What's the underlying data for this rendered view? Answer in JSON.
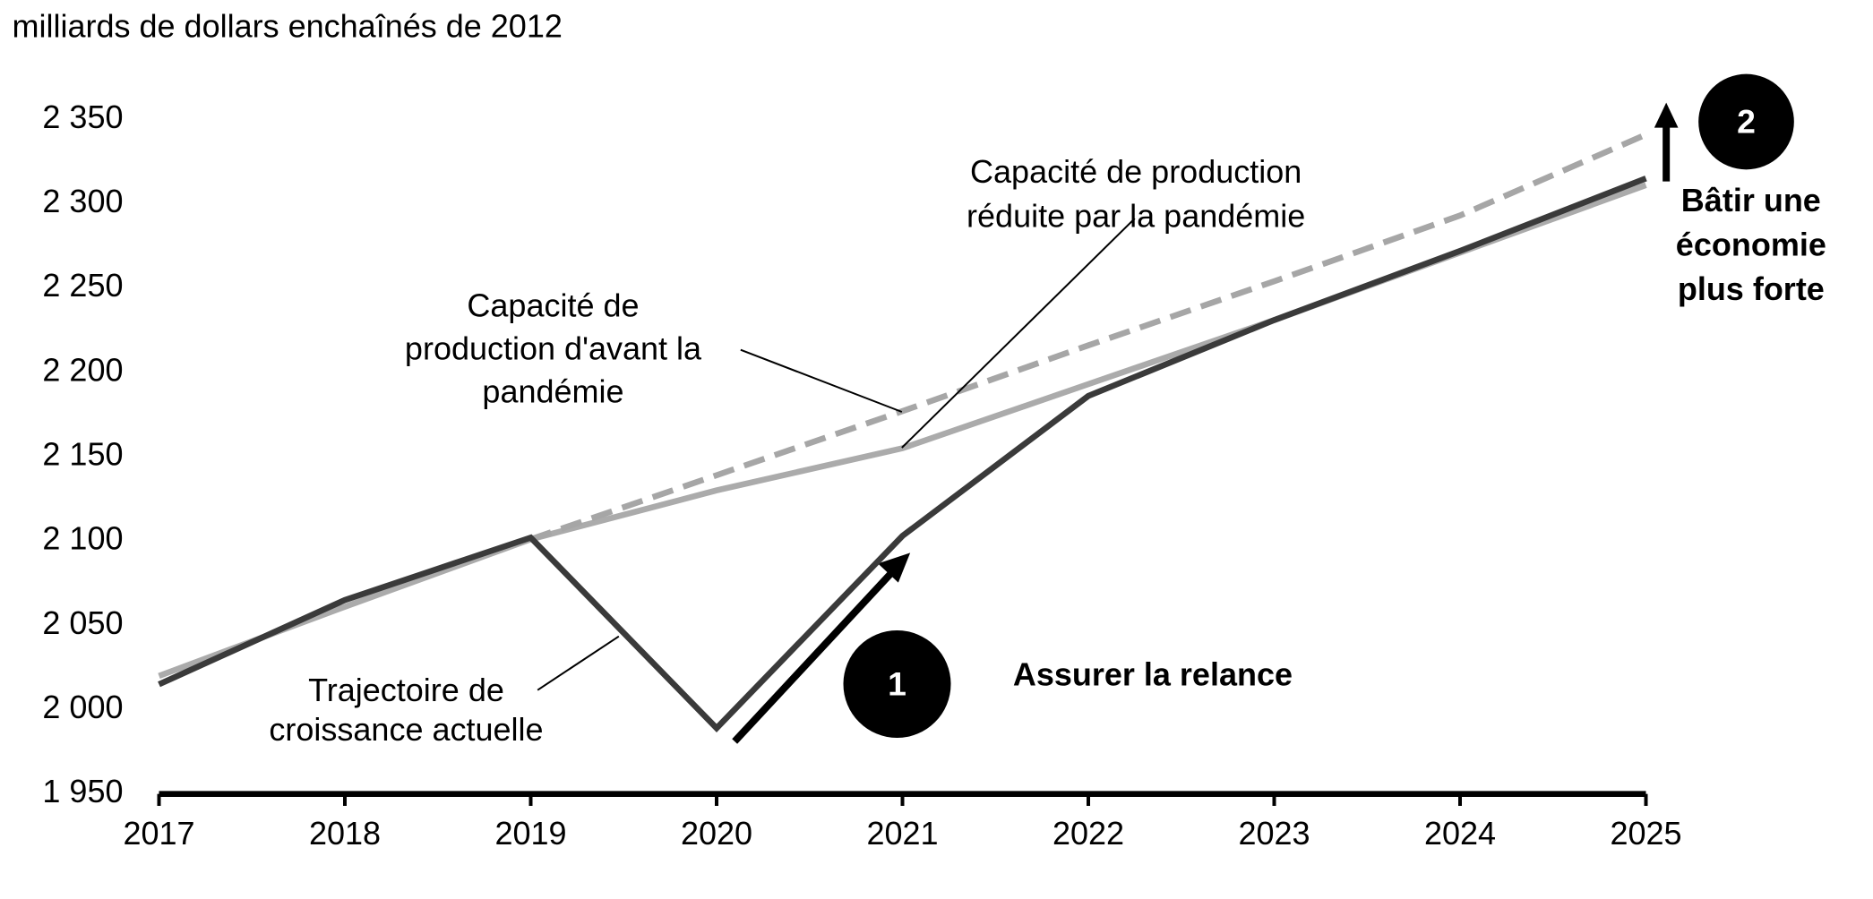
{
  "chart_data": {
    "type": "line",
    "y_axis_label": "milliards de dollars enchaînés de 2012",
    "x": [
      2017,
      2018,
      2019,
      2020,
      2021,
      2022,
      2023,
      2024,
      2025
    ],
    "xlim": [
      2017,
      2025
    ],
    "ylim": [
      1950,
      2350
    ],
    "yticks": [
      {
        "value": 1950,
        "label": "1 950"
      },
      {
        "value": 2000,
        "label": "2 000"
      },
      {
        "value": 2050,
        "label": "2 050"
      },
      {
        "value": 2100,
        "label": "2 100"
      },
      {
        "value": 2150,
        "label": "2 150"
      },
      {
        "value": 2200,
        "label": "2 200"
      },
      {
        "value": 2250,
        "label": "2 250"
      },
      {
        "value": 2300,
        "label": "2 300"
      },
      {
        "value": 2350,
        "label": "2 350"
      }
    ],
    "series": [
      {
        "label_lines": [
          "Capacité de production",
          "réduite par la pandémie"
        ],
        "color": "#ababab",
        "dashed": false,
        "values": [
          2020,
          2061,
          2101,
          2130,
          2155,
          2193,
          2231,
          2271,
          2311
        ]
      },
      {
        "label_lines": [
          "Capacité de",
          "production d'avant la",
          "pandémie"
        ],
        "color": "#a6a6a6",
        "dashed": true,
        "values": [
          null,
          null,
          2101,
          2139,
          2177,
          2216,
          2254,
          2293,
          2341
        ]
      },
      {
        "label_lines": [
          "Trajectoire de",
          "croissance actuelle"
        ],
        "color": "#3a3a3a",
        "dashed": false,
        "values": [
          2015,
          2065,
          2102,
          1989,
          2103,
          2186,
          2231,
          2272,
          2315
        ]
      }
    ],
    "callouts": [
      {
        "marker": "1",
        "lines": [
          "Assurer la relance"
        ]
      },
      {
        "marker": "2",
        "lines": [
          "Bâtir une",
          "économie",
          "plus forte"
        ]
      }
    ]
  }
}
